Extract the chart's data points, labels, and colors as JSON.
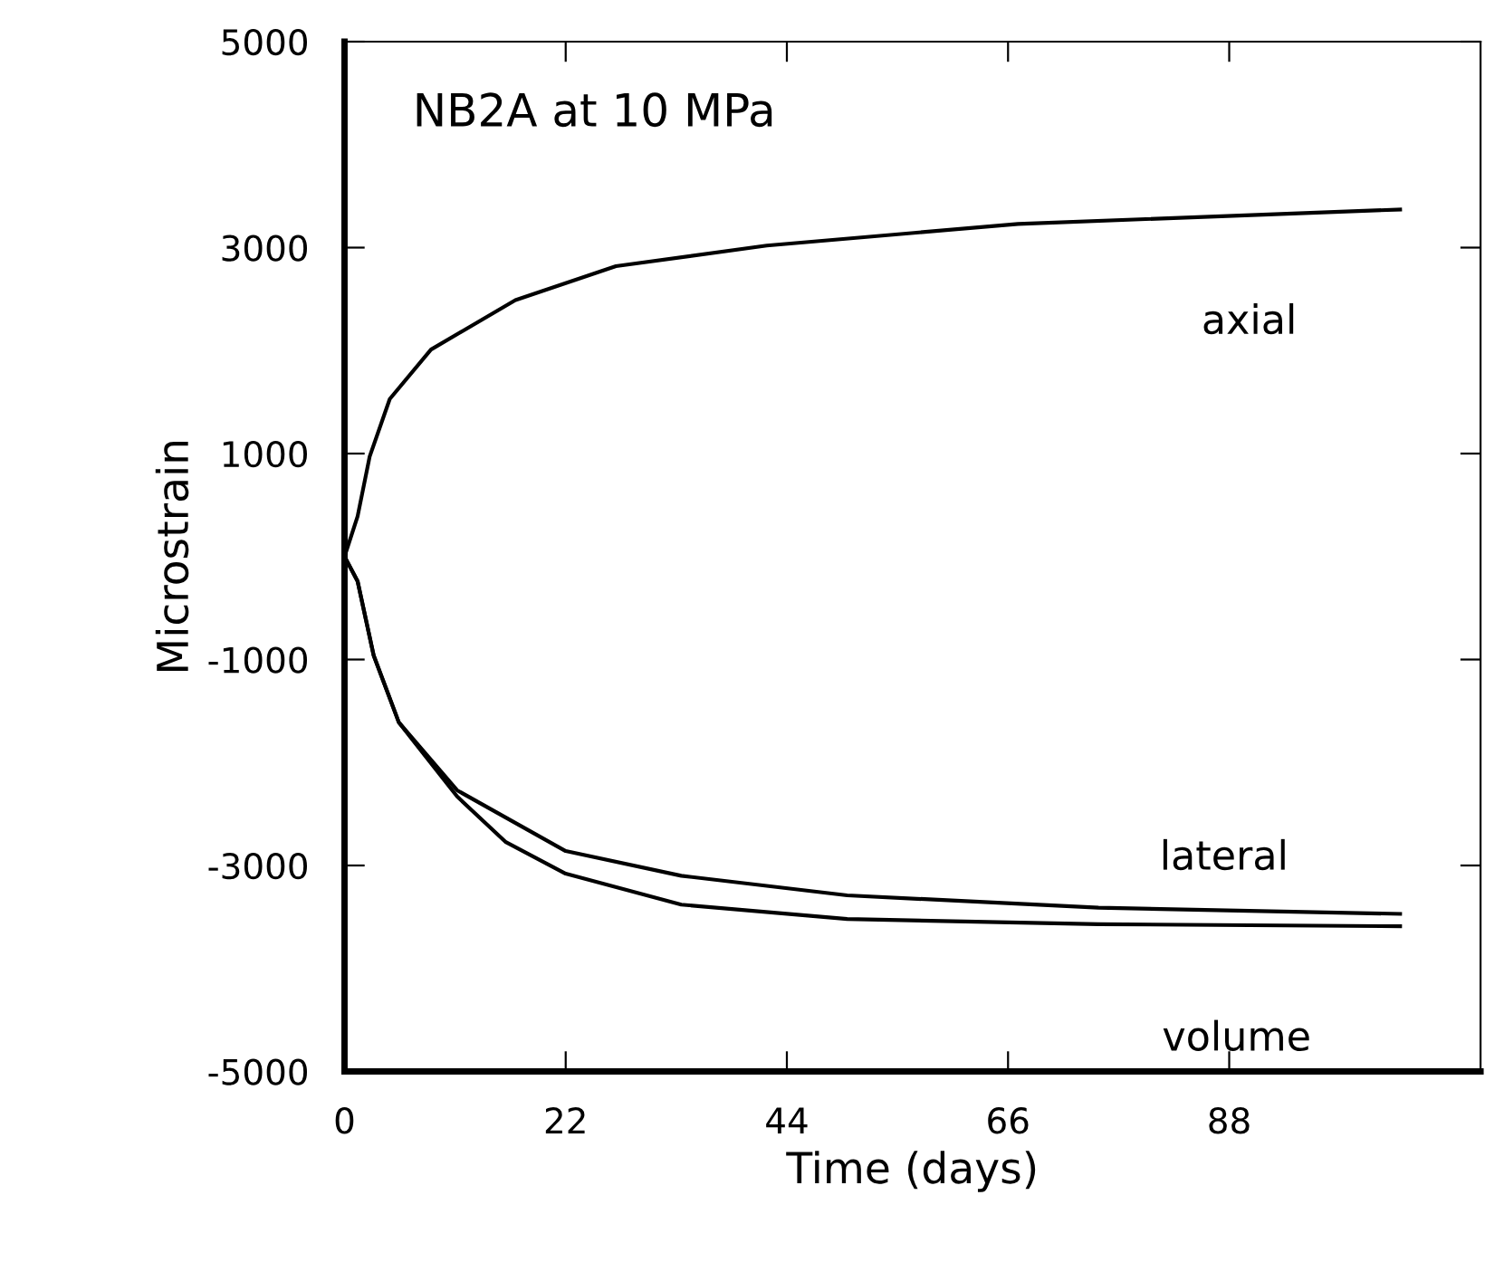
{
  "chart_data": {
    "type": "line",
    "title": "NB2A at 10 MPa",
    "xlabel": "Time (days)",
    "ylabel": "Microstrain",
    "xlim": [
      0,
      113
    ],
    "xticks": [
      0,
      22,
      44,
      66,
      88
    ],
    "ylim": [
      -5000,
      5000
    ],
    "yticks": [
      -5000,
      -3000,
      -1000,
      1000,
      3000,
      5000
    ],
    "grid": false,
    "legend": false,
    "marker": "none",
    "line_style": "solid",
    "series": [
      {
        "name": "axial",
        "color": "#000000",
        "x": [
          0,
          1.3,
          2.5,
          4.5,
          8.6,
          17,
          27,
          42,
          67,
          105
        ],
        "values": [
          0,
          390,
          970,
          1530,
          2010,
          2490,
          2820,
          3020,
          3230,
          3370
        ]
      },
      {
        "name": "lateral",
        "color": "#000000",
        "x": [
          0,
          1.3,
          2.9,
          5.4,
          11.2,
          22,
          33.5,
          50,
          75,
          105
        ],
        "values": [
          0,
          -240,
          -960,
          -1610,
          -2270,
          -2860,
          -3100,
          -3290,
          -3410,
          -3470
        ]
      },
      {
        "name": "volume",
        "color": "#000000",
        "x": [
          0,
          1.3,
          2.9,
          5.4,
          11.2,
          16,
          22,
          33.5,
          50,
          75,
          105
        ],
        "values": [
          0,
          -240,
          -960,
          -1610,
          -2330,
          -2770,
          -3080,
          -3380,
          -3520,
          -3570,
          -3590
        ]
      }
    ]
  }
}
